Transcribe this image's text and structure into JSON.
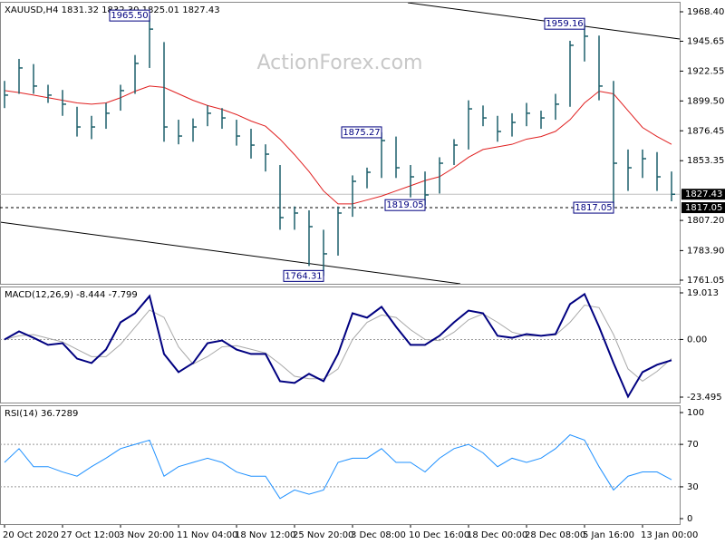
{
  "chart_data": [
    {
      "type": "ohlc",
      "title": "XAUUSD,H4  1831.32 1832.30 1825.01 1827.43",
      "watermark": "ActionForex.com",
      "color": "#1c5f6a",
      "categories": [
        "20 Oct 2020",
        null,
        null,
        null,
        "27 Oct 12:00",
        null,
        null,
        null,
        "3 Nov 20:00",
        null,
        null,
        null,
        "11 Nov 04:00",
        null,
        null,
        null,
        "18 Nov 12:00",
        null,
        null,
        null,
        "25 Nov 20:00",
        null,
        null,
        null,
        "3 Dec 08:00",
        null,
        null,
        null,
        "10 Dec 16:00",
        null,
        null,
        null,
        "18 Dec 00:00",
        null,
        null,
        null,
        "28 Dec 08:00",
        null,
        null,
        null,
        "5 Jan 16:00",
        null,
        null,
        null,
        "13 Jan 00:00",
        null,
        null
      ],
      "high": [
        1915,
        1932,
        1928,
        1912,
        1908,
        1895,
        1888,
        1898,
        1912,
        1935,
        1965.5,
        1945,
        1885,
        1886,
        1896,
        1894,
        1885,
        1878,
        1866,
        1850,
        1818,
        1815,
        1800,
        1818,
        1842,
        1848,
        1875.27,
        1872,
        1850,
        1845,
        1856,
        1870,
        1900,
        1896,
        1888,
        1890,
        1898,
        1892,
        1905,
        1946,
        1959.16,
        1950,
        1915,
        1862,
        1862,
        1860,
        1845
      ],
      "low": [
        1894,
        1905,
        1905,
        1898,
        1888,
        1872,
        1870,
        1878,
        1892,
        1905,
        1925,
        1868,
        1866,
        1868,
        1880,
        1878,
        1865,
        1855,
        1845,
        1800,
        1800,
        1772,
        1764.31,
        1780,
        1810,
        1832,
        1840,
        1840,
        1825,
        1819.05,
        1828,
        1850,
        1862,
        1880,
        1868,
        1872,
        1880,
        1878,
        1885,
        1895,
        1930,
        1900,
        1817.05,
        1830,
        1840,
        1830,
        1822
      ],
      "close": [
        1904.0,
        1925.0,
        1911.0,
        1904.0,
        1897.0,
        1879.4,
        1879.4,
        1890.0,
        1907.5,
        1928.5,
        1955.0,
        1879.4,
        1872.4,
        1879.4,
        1890.0,
        1886.4,
        1872.4,
        1865.4,
        1858.4,
        1809.4,
        1812.9,
        1802.4,
        1781.4,
        1812.9,
        1837.4,
        1844.4,
        1868.9,
        1847.9,
        1840.9,
        1826.9,
        1851.4,
        1865.4,
        1893.4,
        1886.4,
        1875.9,
        1882.9,
        1890.0,
        1886.4,
        1897.0,
        1942.5,
        1949.5,
        1911.0,
        1851.4,
        1847.9,
        1854.9,
        1840.9,
        1827.43
      ],
      "series": [
        {
          "color": "#e02020",
          "values": [
            1907.5,
            1906,
            1904,
            1902,
            1900,
            1898,
            1897,
            1898,
            1902,
            1907,
            1911,
            1910,
            1905,
            1900,
            1896,
            1893,
            1889,
            1884,
            1880,
            1870,
            1858,
            1845,
            1830,
            1820,
            1820,
            1823,
            1826,
            1830,
            1834,
            1838,
            1841,
            1848,
            1856,
            1862,
            1864,
            1866,
            1870,
            1872,
            1876,
            1885,
            1898,
            1907,
            1905,
            1892,
            1879,
            1872,
            1866
          ]
        }
      ],
      "ylim": [
        1758.25,
        1977.5
      ],
      "yticks": [
        {
          "value": 1968.4,
          "label": "1968.40"
        },
        {
          "value": 1945.65,
          "label": "1945.65"
        },
        {
          "value": 1922.55,
          "label": "1922.55"
        },
        {
          "value": 1899.5,
          "label": "1899.50"
        },
        {
          "value": 1876.45,
          "label": "1876.45"
        },
        {
          "value": 1853.35,
          "label": "1853.35"
        },
        {
          "value": 1807.2,
          "label": "1807.20"
        },
        {
          "value": 1783.9,
          "label": "1783.90"
        },
        {
          "value": 1761.05,
          "label": "1761.05"
        }
      ],
      "current": {
        "value": 1827.43,
        "label": "1827.43"
      },
      "levels": [
        {
          "value": 1817.05,
          "label": "1817.05"
        }
      ],
      "annotations": [
        {
          "value": 1965.5,
          "label": "1965.50"
        },
        {
          "value": 1959.16,
          "label": "1959.16"
        },
        {
          "value": 1875.27,
          "label": "1875.27"
        },
        {
          "value": 1819.05,
          "label": "1819.05"
        },
        {
          "value": 1817.05,
          "label": "1817.05"
        },
        {
          "value": 1764.31,
          "label": "1764.31"
        }
      ]
    },
    {
      "type": "line",
      "title": "MACD(12,26,9) -8.444 -7.799",
      "grid": true,
      "series": [
        {
          "color": "#000080",
          "values": [
            0,
            3.3,
            0.7,
            -2.2,
            -1.5,
            -7.8,
            -9.6,
            -4.1,
            7,
            10.7,
            17.7,
            -5.9,
            -13.3,
            -9.6,
            -1.5,
            -0.4,
            -4.1,
            -5.9,
            -5.9,
            -17,
            -17.7,
            -14,
            -17,
            -5.9,
            10.7,
            8.9,
            13.3,
            5.2,
            -2.2,
            -2.2,
            1.5,
            7,
            11.8,
            10.7,
            1.5,
            0.7,
            2.2,
            1.5,
            2.2,
            14.4,
            18.5,
            5.2,
            -9.6,
            -23.3,
            -13.3,
            -10.3,
            -8.444
          ]
        },
        {
          "color": "#a8a8a8",
          "values": [
            0,
            1.5,
            2,
            0.5,
            -1,
            -4,
            -7,
            -7,
            -2,
            5,
            12,
            9,
            -3,
            -10,
            -7,
            -3,
            -2.5,
            -4,
            -5.5,
            -10,
            -15,
            -16,
            -16,
            -12,
            0,
            7,
            10,
            9,
            4,
            0,
            -0.5,
            3,
            8,
            10.5,
            7,
            3,
            1.5,
            1.5,
            1.8,
            7,
            14,
            13,
            2,
            -12,
            -17,
            -13,
            -7.799
          ]
        }
      ],
      "ylim": [
        -25.71,
        21.23
      ],
      "yticks": [
        19.013,
        {
          "value": 0,
          "label": "0.00"
        },
        -23.495
      ]
    },
    {
      "type": "line",
      "title": "RSI(14) 36.7289",
      "grid": true,
      "series": [
        {
          "color": "#1e90ff",
          "values": [
            53,
            66,
            49,
            49,
            44,
            40,
            49,
            57,
            66,
            70,
            74,
            40,
            49,
            53,
            57,
            53,
            44,
            40,
            40,
            19,
            27,
            23,
            27,
            53,
            57,
            57,
            66,
            53,
            53,
            44,
            57,
            66,
            70,
            62,
            49,
            57,
            53,
            57,
            66,
            79,
            74,
            49,
            27,
            40,
            44,
            44,
            36.7289
          ]
        }
      ],
      "ylim": [
        -5.1,
        106
      ],
      "yticks": [
        100,
        70,
        30,
        0
      ]
    }
  ]
}
